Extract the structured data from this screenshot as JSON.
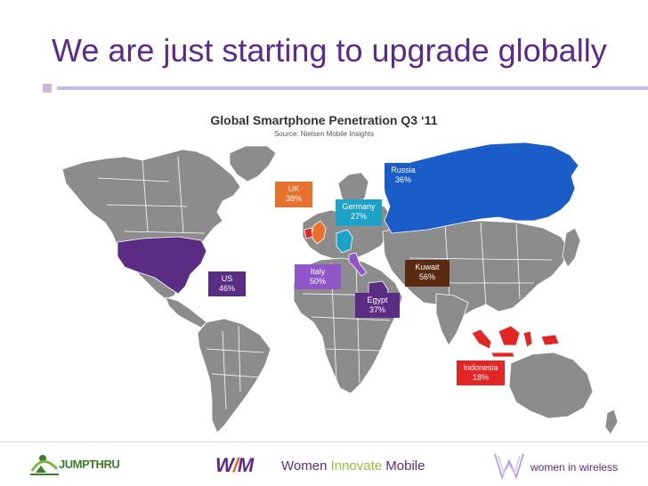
{
  "slide": {
    "title": "We are just starting to upgrade globally"
  },
  "chart": {
    "title": "Global Smartphone Penetration Q3 ‘11",
    "source": "Source: Nielsen Mobile Insights"
  },
  "chart_data": {
    "type": "map",
    "title": "Global Smartphone Penetration Q3 ‘11",
    "source": "Source: Nielsen Mobile Insights",
    "unit": "%",
    "regions": [
      {
        "country": "US",
        "value": 46,
        "label": "46%",
        "color": "#5b2c83"
      },
      {
        "country": "UK",
        "value": 38,
        "label": "38%",
        "color": "#e8712b"
      },
      {
        "country": "Germany",
        "value": 27,
        "label": "27%",
        "color": "#1fa2c8"
      },
      {
        "country": "Russia",
        "value": 36,
        "label": "36%",
        "color": "#1a5cc8"
      },
      {
        "country": "Italy",
        "value": 50,
        "label": "50%",
        "color": "#8e56c9"
      },
      {
        "country": "Kuwait",
        "value": 56,
        "label": "56%",
        "color": "#5a2a10"
      },
      {
        "country": "Egypt",
        "value": 37,
        "label": "37%",
        "color": "#5b2c83"
      },
      {
        "country": "Indonesia",
        "value": 18,
        "label": "18%",
        "color": "#e32525"
      }
    ]
  },
  "colors": {
    "title": "#5c2a8c",
    "land": "#8c8c8c",
    "country_border": "#ffffff",
    "rule": "#c9b8e2"
  },
  "footer": {
    "jumpthru": "JUMPTHRU",
    "wim_mark_w": "W",
    "wim_mark_slash": "/",
    "wim_mark_m": "M",
    "wim_women": "Women ",
    "wim_innovate": "Innovate",
    "wim_mobile": " Mobile",
    "wiw": "women in wireless"
  }
}
